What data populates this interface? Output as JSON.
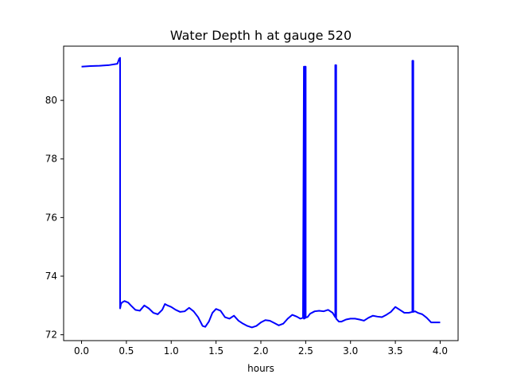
{
  "chart_data": {
    "type": "line",
    "title": "Water Depth h at gauge 520",
    "xlabel": "hours",
    "ylabel": "",
    "xlim": [
      -0.2,
      4.2
    ],
    "ylim": [
      71.8,
      81.85
    ],
    "grid": false,
    "legend": "none",
    "x_ticks": [
      0.0,
      0.5,
      1.0,
      1.5,
      2.0,
      2.5,
      3.0,
      3.5,
      4.0
    ],
    "x_tick_labels": [
      "0.0",
      "0.5",
      "1.0",
      "1.5",
      "2.0",
      "2.5",
      "3.0",
      "3.5",
      "4.0"
    ],
    "y_ticks": [
      72,
      74,
      76,
      78,
      80
    ],
    "y_tick_labels": [
      "72",
      "74",
      "76",
      "78",
      "80"
    ],
    "series": [
      {
        "color": "#0000ff",
        "x": [
          0.0,
          0.1,
          0.2,
          0.3,
          0.4,
          0.42,
          0.43,
          0.43,
          0.44,
          0.45,
          0.48,
          0.52,
          0.55,
          0.6,
          0.65,
          0.7,
          0.75,
          0.8,
          0.85,
          0.9,
          0.93,
          0.96,
          1.0,
          1.05,
          1.1,
          1.15,
          1.2,
          1.25,
          1.3,
          1.35,
          1.38,
          1.42,
          1.46,
          1.5,
          1.55,
          1.6,
          1.65,
          1.7,
          1.75,
          1.8,
          1.85,
          1.9,
          1.95,
          2.0,
          2.05,
          2.1,
          2.15,
          2.2,
          2.25,
          2.3,
          2.35,
          2.4,
          2.44,
          2.47,
          2.48,
          2.48,
          2.49,
          2.49,
          2.5,
          2.5,
          2.51,
          2.52,
          2.55,
          2.6,
          2.65,
          2.7,
          2.75,
          2.8,
          2.83,
          2.83,
          2.84,
          2.84,
          2.87,
          2.9,
          2.95,
          3.0,
          3.05,
          3.1,
          3.15,
          3.2,
          3.25,
          3.3,
          3.35,
          3.4,
          3.45,
          3.5,
          3.55,
          3.6,
          3.65,
          3.69,
          3.69,
          3.7,
          3.7,
          3.72,
          3.75,
          3.8,
          3.85,
          3.9,
          4.0
        ],
        "y": [
          81.15,
          81.17,
          81.18,
          81.2,
          81.25,
          81.42,
          81.45,
          72.9,
          73.05,
          73.1,
          73.15,
          73.1,
          73.0,
          72.85,
          72.82,
          73.0,
          72.9,
          72.75,
          72.7,
          72.85,
          73.05,
          73.0,
          72.95,
          72.85,
          72.78,
          72.8,
          72.92,
          72.8,
          72.6,
          72.3,
          72.27,
          72.45,
          72.75,
          72.88,
          72.82,
          72.6,
          72.55,
          72.65,
          72.48,
          72.38,
          72.3,
          72.25,
          72.3,
          72.42,
          72.5,
          72.48,
          72.4,
          72.32,
          72.38,
          72.55,
          72.68,
          72.62,
          72.55,
          72.58,
          81.15,
          72.55,
          72.56,
          81.15,
          81.15,
          72.58,
          72.6,
          72.6,
          72.72,
          72.8,
          72.82,
          72.8,
          72.85,
          72.75,
          72.6,
          81.2,
          81.2,
          72.55,
          72.45,
          72.45,
          72.52,
          72.55,
          72.55,
          72.52,
          72.48,
          72.58,
          72.65,
          72.62,
          72.6,
          72.68,
          72.78,
          72.95,
          72.85,
          72.75,
          72.75,
          72.78,
          81.35,
          81.35,
          72.78,
          72.8,
          72.75,
          72.7,
          72.58,
          72.42,
          72.42
        ]
      }
    ]
  }
}
